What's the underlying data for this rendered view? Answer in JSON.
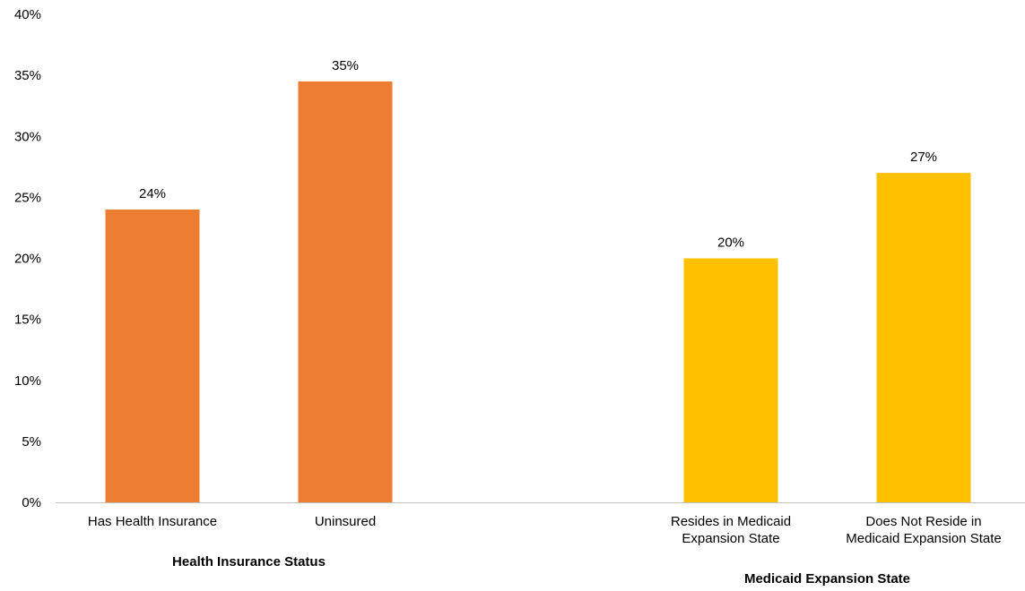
{
  "chart_data": {
    "type": "bar",
    "ylim": [
      0,
      40
    ],
    "y_ticks": [
      "0%",
      "5%",
      "10%",
      "15%",
      "20%",
      "25%",
      "30%",
      "35%",
      "40%"
    ],
    "grid": false,
    "legend": "none",
    "groups": [
      {
        "name": "Health Insurance Status",
        "color": "#ED7D31",
        "bars": [
          {
            "category": [
              "Has Health Insurance"
            ],
            "value": 24,
            "label": "24%"
          },
          {
            "category": [
              "Uninsured"
            ],
            "value": 34.5,
            "label": "35%"
          }
        ]
      },
      {
        "name": "Medicaid Expansion State",
        "color": "#FFC000",
        "bars": [
          {
            "category": [
              "Resides in Medicaid",
              "Expansion State"
            ],
            "value": 20,
            "label": "20%"
          },
          {
            "category": [
              "Does Not Reside in",
              "Medicaid Expansion State"
            ],
            "value": 27,
            "label": "27%"
          }
        ]
      }
    ]
  }
}
